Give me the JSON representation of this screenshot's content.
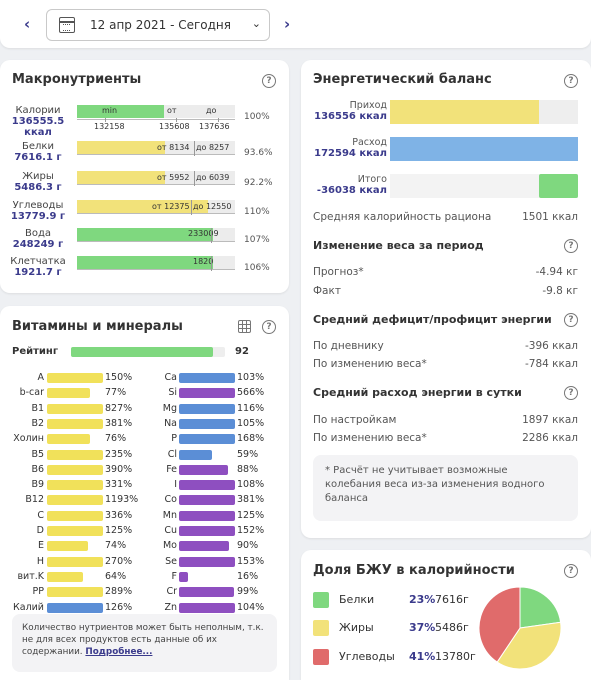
{
  "date_nav": {
    "prev": "‹",
    "next": "›",
    "date": "12 апр 2021 - Сегодня",
    "chevron": "⌄"
  },
  "macro": {
    "title": "Макронутриенты",
    "help": "?",
    "header": {
      "min": "min",
      "ot": "от",
      "do": "до"
    },
    "rows": [
      {
        "name": "Калории",
        "value": "136555.5 ккал",
        "pct": "100%",
        "fill": 0.55,
        "color": "#7fd87f",
        "ticks": [
          "132158",
          "135608",
          "137636"
        ]
      },
      {
        "name": "Белки",
        "value": "7616.1 г",
        "pct": "93.6%",
        "fill": 0.56,
        "color": "#f2e27a",
        "from": "от 8134",
        "to": "до 8257"
      },
      {
        "name": "Жиры",
        "value": "5486.3 г",
        "pct": "92.2%",
        "fill": 0.56,
        "color": "#f2e27a",
        "from": "от 5952",
        "to": "до 6039"
      },
      {
        "name": "Углеводы",
        "value": "13779.9 г",
        "pct": "110%",
        "fill": 0.83,
        "color": "#f2e27a",
        "from": "от 12375",
        "to": "до 12550"
      },
      {
        "name": "Вода",
        "value": "248249 г",
        "pct": "107%",
        "fill": 0.86,
        "color": "#7fd87f",
        "mark": "233009"
      },
      {
        "name": "Клетчатка",
        "value": "1921.7 г",
        "pct": "106%",
        "fill": 0.86,
        "color": "#7fd87f",
        "mark": "1820"
      }
    ]
  },
  "vitamins": {
    "title": "Витамины и минералы",
    "help": "?",
    "rating_label": "Рейтинг",
    "rating_value": "92",
    "rating_fill": 0.92,
    "left": [
      {
        "n": "A",
        "v": "150%",
        "c": "#f1e15a",
        "f": 1.0
      },
      {
        "n": "b-car",
        "v": "77%",
        "c": "#f1e15a",
        "f": 0.77
      },
      {
        "n": "B1",
        "v": "827%",
        "c": "#f1e15a",
        "f": 1.0
      },
      {
        "n": "B2",
        "v": "381%",
        "c": "#f1e15a",
        "f": 1.0
      },
      {
        "n": "Холин",
        "v": "76%",
        "c": "#f1e15a",
        "f": 0.76
      },
      {
        "n": "B5",
        "v": "235%",
        "c": "#f1e15a",
        "f": 1.0
      },
      {
        "n": "B6",
        "v": "390%",
        "c": "#f1e15a",
        "f": 1.0
      },
      {
        "n": "B9",
        "v": "331%",
        "c": "#f1e15a",
        "f": 1.0
      },
      {
        "n": "B12",
        "v": "1193%",
        "c": "#f1e15a",
        "f": 1.0
      },
      {
        "n": "C",
        "v": "336%",
        "c": "#f1e15a",
        "f": 1.0
      },
      {
        "n": "D",
        "v": "125%",
        "c": "#f1e15a",
        "f": 1.0
      },
      {
        "n": "E",
        "v": "74%",
        "c": "#f1e15a",
        "f": 0.74
      },
      {
        "n": "H",
        "v": "270%",
        "c": "#f1e15a",
        "f": 1.0
      },
      {
        "n": "вит.K",
        "v": "64%",
        "c": "#f1e15a",
        "f": 0.64
      },
      {
        "n": "PP",
        "v": "289%",
        "c": "#f1e15a",
        "f": 1.0
      },
      {
        "n": "Калий",
        "v": "126%",
        "c": "#5b8ed6",
        "f": 1.0
      }
    ],
    "right": [
      {
        "n": "Ca",
        "v": "103%",
        "c": "#5b8ed6",
        "f": 1.0
      },
      {
        "n": "Si",
        "v": "566%",
        "c": "#8e4fc0",
        "f": 1.0
      },
      {
        "n": "Mg",
        "v": "116%",
        "c": "#5b8ed6",
        "f": 1.0
      },
      {
        "n": "Na",
        "v": "105%",
        "c": "#5b8ed6",
        "f": 1.0
      },
      {
        "n": "P",
        "v": "168%",
        "c": "#5b8ed6",
        "f": 1.0
      },
      {
        "n": "Cl",
        "v": "59%",
        "c": "#5b8ed6",
        "f": 0.59
      },
      {
        "n": "Fe",
        "v": "88%",
        "c": "#8e4fc0",
        "f": 0.88
      },
      {
        "n": "I",
        "v": "108%",
        "c": "#8e4fc0",
        "f": 1.0
      },
      {
        "n": "Co",
        "v": "381%",
        "c": "#8e4fc0",
        "f": 1.0
      },
      {
        "n": "Mn",
        "v": "125%",
        "c": "#8e4fc0",
        "f": 1.0
      },
      {
        "n": "Cu",
        "v": "152%",
        "c": "#8e4fc0",
        "f": 1.0
      },
      {
        "n": "Mo",
        "v": "90%",
        "c": "#8e4fc0",
        "f": 0.9
      },
      {
        "n": "Se",
        "v": "153%",
        "c": "#8e4fc0",
        "f": 1.0
      },
      {
        "n": "F",
        "v": "16%",
        "c": "#8e4fc0",
        "f": 0.16
      },
      {
        "n": "Cr",
        "v": "99%",
        "c": "#8e4fc0",
        "f": 0.99
      },
      {
        "n": "Zn",
        "v": "104%",
        "c": "#8e4fc0",
        "f": 1.0
      }
    ],
    "note": "Количество нутриентов может быть неполным, т.к. не для всех продуктов есть данные об их содержании.",
    "note_link": "Подробнее..."
  },
  "energy": {
    "title": "Энергетический баланс",
    "help": "?",
    "income_label": "Приход",
    "income_value": "136556 ккал",
    "income_fill": 0.79,
    "expense_label": "Расход",
    "expense_value": "172594 ккал",
    "expense_fill": 1.0,
    "total_label": "Итого",
    "total_value": "-36038 ккал",
    "total_fill": 0.21,
    "avg_label": "Средняя калорийность рациона",
    "avg_value": "1501 ккал",
    "weight_title": "Изменение веса за период",
    "forecast_label": "Прогноз*",
    "forecast_value": "-4.94 кг",
    "fact_label": "Факт",
    "fact_value": "-9.8 кг",
    "deficit_title": "Средний дефицит/профицит энергии",
    "by_diary_label": "По дневнику",
    "by_diary_value": "-396 ккал",
    "by_weight_label": "По изменению веса*",
    "by_weight_value": "-784 ккал",
    "daily_title": "Средний расход энергии в сутки",
    "by_settings_label": "По настройкам",
    "by_settings_value": "1897 ккал",
    "by_weight2_label": "По изменению веса*",
    "by_weight2_value": "2286 ккал",
    "note": "* Расчёт не учитывает возможные колебания веса из-за изменения водного баланса",
    "colors": {
      "income": "#f2e27a",
      "expense": "#7fb3e6",
      "total": "#7fd87f"
    }
  },
  "share": {
    "title": "Доля БЖУ в калорийности",
    "help": "?",
    "items": [
      {
        "name": "Белки",
        "pct": "23%",
        "grams": "7616г",
        "color": "#7fd87f",
        "frac": 0.23
      },
      {
        "name": "Жиры",
        "pct": "37%",
        "grams": "5486г",
        "color": "#f2e27a",
        "frac": 0.37
      },
      {
        "name": "Углеводы",
        "pct": "41%",
        "grams": "13780г",
        "color": "#e06b6b",
        "frac": 0.41
      }
    ]
  }
}
